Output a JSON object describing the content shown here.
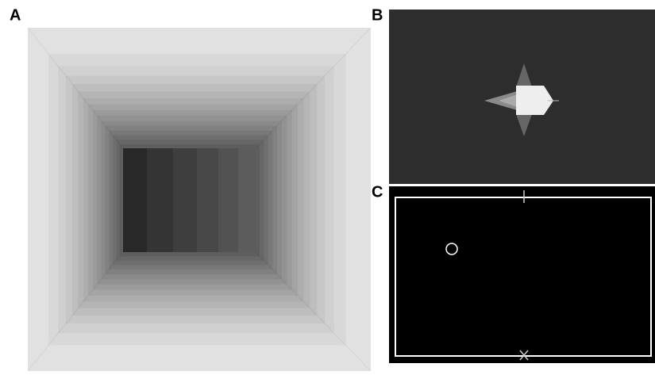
{
  "panels": [
    {
      "label": "A"
    },
    {
      "label": "B"
    },
    {
      "label": "C"
    }
  ]
}
